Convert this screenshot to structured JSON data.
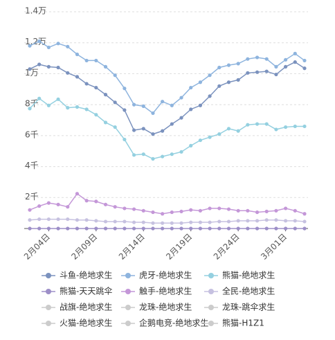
{
  "chart_data": {
    "type": "line",
    "categories": [
      null,
      null,
      "2月04日",
      null,
      null,
      null,
      null,
      "2月09日",
      null,
      null,
      null,
      null,
      "2月14日",
      null,
      null,
      null,
      null,
      "2月19日",
      null,
      null,
      null,
      null,
      "2月24日",
      null,
      null,
      null,
      null,
      "3月01日",
      null,
      null
    ],
    "ylim": [
      0,
      14000
    ],
    "yticks": [
      {
        "value": 2000,
        "label": "2千"
      },
      {
        "value": 4000,
        "label": "4千"
      },
      {
        "value": 6000,
        "label": "6千"
      },
      {
        "value": 8000,
        "label": "8千"
      },
      {
        "value": 10000,
        "label": "1万"
      },
      {
        "value": 12000,
        "label": "1.2万"
      },
      {
        "value": 14000,
        "label": "1.4万"
      }
    ],
    "grid": true,
    "series": [
      {
        "name": "斗鱼-绝地求生",
        "color": "#7b92be",
        "values": [
          10300,
          10600,
          10450,
          10400,
          10050,
          9800,
          9350,
          9100,
          8650,
          8150,
          7650,
          6350,
          6450,
          6100,
          6300,
          6750,
          7150,
          7700,
          7950,
          8550,
          9200,
          9450,
          9600,
          10050,
          10100,
          10150,
          9950,
          10450,
          10750,
          10350
        ]
      },
      {
        "name": "虎牙-绝地求生",
        "color": "#8eb4de",
        "values": [
          11800,
          12100,
          11700,
          11950,
          11750,
          11250,
          10850,
          10850,
          10450,
          9900,
          9050,
          8000,
          7900,
          7450,
          8200,
          7950,
          8450,
          9100,
          9450,
          9900,
          10400,
          10550,
          10650,
          10950,
          11050,
          10950,
          10450,
          10900,
          11300,
          10850
        ]
      },
      {
        "name": "熊猫-绝地求生",
        "color": "#94d0e0",
        "values": [
          7750,
          8400,
          7950,
          8350,
          7800,
          7850,
          7700,
          7350,
          6850,
          6550,
          5750,
          4750,
          4800,
          4500,
          4650,
          4800,
          4950,
          5350,
          5700,
          5900,
          6100,
          6450,
          6300,
          6700,
          6750,
          6750,
          6400,
          6550,
          6600,
          6600
        ]
      },
      {
        "name": "熊猫-天天跳伞",
        "color": "#9d8fc8",
        "values": [
          0,
          0,
          0,
          0,
          0,
          0,
          0,
          0,
          0,
          0,
          0,
          0,
          0,
          0,
          0,
          0,
          0,
          0,
          0,
          0,
          0,
          0,
          0,
          0,
          0,
          0,
          0,
          0,
          0,
          0
        ]
      },
      {
        "name": "触手-绝地求生",
        "color": "#c497d8",
        "values": [
          1200,
          1450,
          1650,
          1550,
          1400,
          2250,
          1800,
          1750,
          1550,
          1400,
          1300,
          1250,
          1150,
          1050,
          950,
          1050,
          1100,
          1200,
          1150,
          1300,
          1300,
          1250,
          1150,
          1150,
          1050,
          1100,
          1150,
          1300,
          1150,
          950
        ]
      },
      {
        "name": "全民-绝地求生",
        "color": "#c6c1e0",
        "values": [
          550,
          600,
          600,
          600,
          600,
          550,
          550,
          500,
          450,
          450,
          450,
          400,
          400,
          350,
          350,
          350,
          350,
          400,
          400,
          400,
          450,
          450,
          500,
          500,
          500,
          550,
          550,
          500,
          500,
          450
        ]
      },
      {
        "name": "战旗-绝地求生",
        "color": "#cccccc",
        "visible": false
      },
      {
        "name": "龙珠-绝地求生",
        "color": "#cccccc",
        "visible": false
      },
      {
        "name": "龙珠-跳伞求生",
        "color": "#cccccc",
        "visible": false
      },
      {
        "name": "火猫-绝地求生",
        "color": "#cccccc",
        "visible": false
      },
      {
        "name": "企鹅电竞-绝地求生",
        "color": "#cccccc",
        "visible": false
      },
      {
        "name": "熊猫-H1Z1",
        "color": "#cccccc",
        "visible": false
      }
    ]
  }
}
